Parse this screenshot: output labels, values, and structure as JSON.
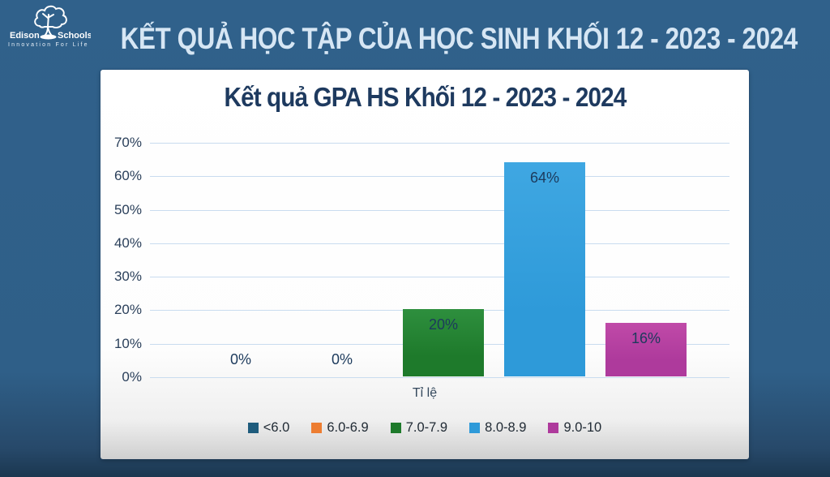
{
  "header": {
    "logo": {
      "name_left": "Edison",
      "name_right": "Schools",
      "tagline": "Innovation For Life"
    },
    "title": "KẾT QUẢ HỌC TẬP CỦA HỌC SINH KHỐI 12 - 2023 - 2024"
  },
  "colors": {
    "background_blue": "#2F5F88",
    "background_bottom": "#1B3750",
    "page_title_text": "#D6E6F4",
    "chart_title_text": "#1E3A5F",
    "gridline": "#C9DCEF",
    "axis_label_text": "#2A3F5A",
    "card_background": "#FFFFFF"
  },
  "chart_data": {
    "type": "bar",
    "title": "Kết quả GPA HS Khối 12 - 2023 - 2024",
    "categories": [
      "<6.0",
      "6.0-6.9",
      "7.0-7.9",
      "8.0-8.9",
      "9.0-10"
    ],
    "values": [
      0,
      0,
      20,
      64,
      16
    ],
    "data_labels": [
      "0%",
      "0%",
      "20%",
      "64%",
      "16%"
    ],
    "xlabel": "Tỉ lệ",
    "ylabel": "",
    "ylim": [
      0,
      70
    ],
    "ytick_step": 10,
    "ytick_suffix": "%",
    "grid": true,
    "legend_position": "bottom",
    "bar_colors": [
      "#1F5C7D",
      "#ED7D31",
      "#1E7A2B",
      "#2E9AD9",
      "#AE3A9C"
    ],
    "bar_colors_light": [
      "#2A6F94",
      "#F28C44",
      "#2E8F3E",
      "#3FA7E2",
      "#C04AA8"
    ]
  }
}
